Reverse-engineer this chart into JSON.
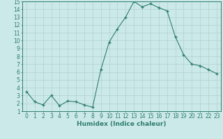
{
  "x": [
    0,
    1,
    2,
    3,
    4,
    5,
    6,
    7,
    8,
    9,
    10,
    11,
    12,
    13,
    14,
    15,
    16,
    17,
    18,
    19,
    20,
    21,
    22,
    23
  ],
  "y": [
    3.5,
    2.2,
    1.8,
    3.0,
    1.7,
    2.3,
    2.2,
    1.8,
    1.5,
    6.3,
    9.8,
    11.5,
    13.0,
    15.0,
    14.3,
    14.7,
    14.2,
    13.8,
    10.5,
    8.2,
    7.0,
    6.8,
    6.3,
    5.8
  ],
  "line_color": "#2e7d6e",
  "marker": "+",
  "marker_size": 3.5,
  "bg_color": "#cce9e9",
  "grid_color": "#b0d0d0",
  "axis_color": "#2e7d6e",
  "xlabel": "Humidex (Indice chaleur)",
  "xlabel_fontsize": 6.5,
  "tick_fontsize": 5.5,
  "xlim": [
    -0.5,
    23.5
  ],
  "ylim": [
    1,
    15
  ],
  "yticks": [
    1,
    2,
    3,
    4,
    5,
    6,
    7,
    8,
    9,
    10,
    11,
    12,
    13,
    14,
    15
  ],
  "xticks": [
    0,
    1,
    2,
    3,
    4,
    5,
    6,
    7,
    8,
    9,
    10,
    11,
    12,
    13,
    14,
    15,
    16,
    17,
    18,
    19,
    20,
    21,
    22,
    23
  ]
}
